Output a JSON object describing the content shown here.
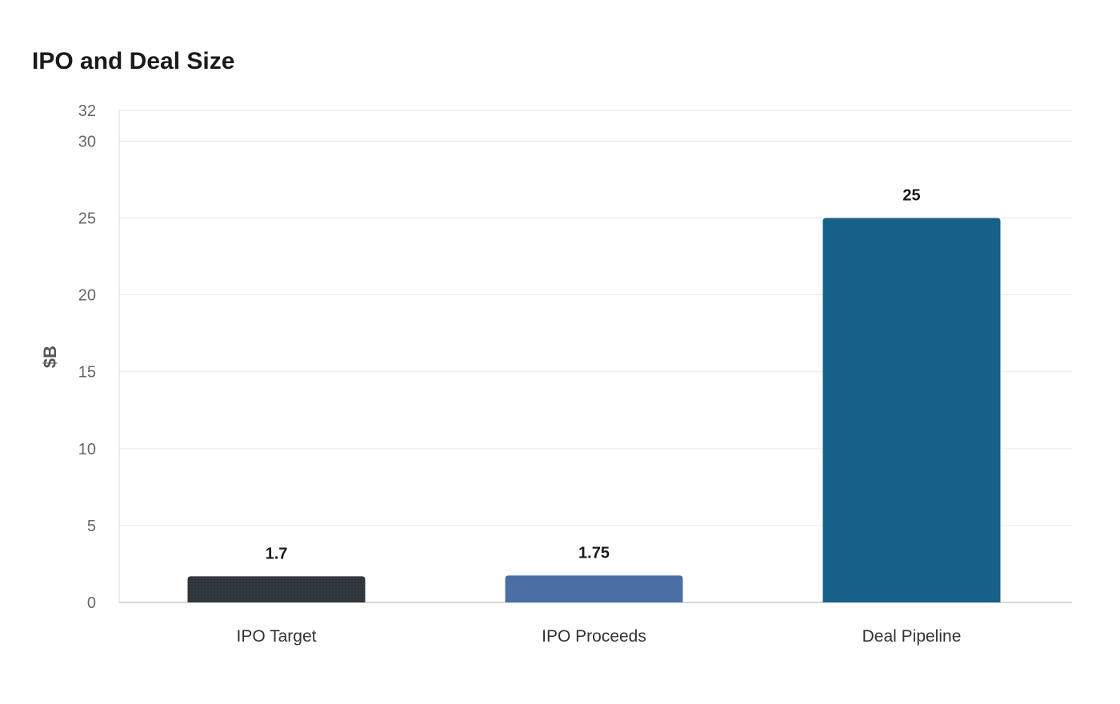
{
  "chart_data": {
    "type": "bar",
    "title": "IPO and Deal Size",
    "xlabel": "",
    "ylabel": "$B",
    "categories": [
      "IPO Target",
      "IPO Proceeds",
      "Deal Pipeline"
    ],
    "values": [
      1.7,
      1.75,
      25
    ],
    "value_labels": [
      "1.7",
      "1.75",
      "25"
    ],
    "ylim": [
      0,
      32
    ],
    "yticks": [
      0,
      5,
      10,
      15,
      20,
      25,
      30,
      32
    ],
    "grid": true,
    "legend": "none",
    "colors": [
      "#2e3438",
      "#4a6fa5",
      "#176189"
    ]
  }
}
